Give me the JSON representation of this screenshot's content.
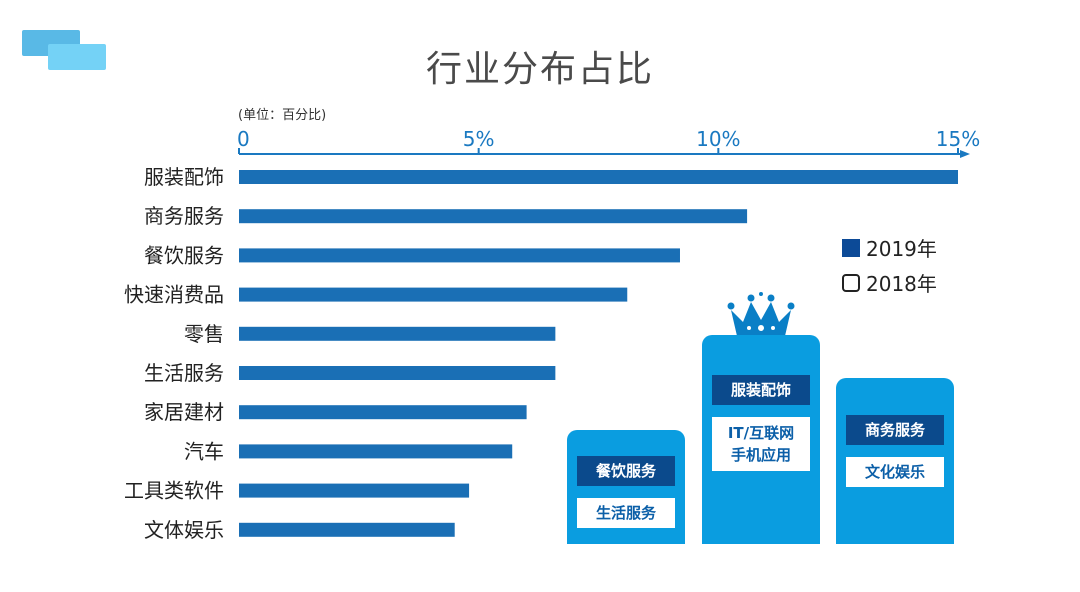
{
  "title": "行业分布占比",
  "unit_label": "(单位：百分比)",
  "chart_data": {
    "type": "bar",
    "orientation": "horizontal",
    "categories": [
      "服装配饰",
      "商务服务",
      "餐饮服务",
      "快速消费品",
      "零售",
      "生活服务",
      "家居建材",
      "汽车",
      "工具类软件",
      "文体娱乐"
    ],
    "series": [
      {
        "name": "2019年",
        "color": "#1a6fb5",
        "values": [
          15.0,
          10.6,
          9.2,
          8.1,
          6.6,
          6.6,
          6.0,
          5.7,
          4.8,
          4.5
        ]
      }
    ],
    "x_ticks": [
      "0",
      "5%",
      "10%",
      "15%"
    ],
    "xlim": [
      0,
      15
    ],
    "axis_position": "top",
    "legend_position": "right"
  },
  "legend": [
    {
      "label": "2019年",
      "style": "filled",
      "color": "#0c4a97"
    },
    {
      "label": "2018年",
      "style": "outline"
    }
  ],
  "podium": {
    "first": {
      "label1": "服装配饰",
      "label2": "IT/互联网\n手机应用"
    },
    "second": {
      "label1": "餐饮服务",
      "label2": "生活服务"
    },
    "third": {
      "label1": "商务服务",
      "label2": "文化娱乐"
    }
  }
}
